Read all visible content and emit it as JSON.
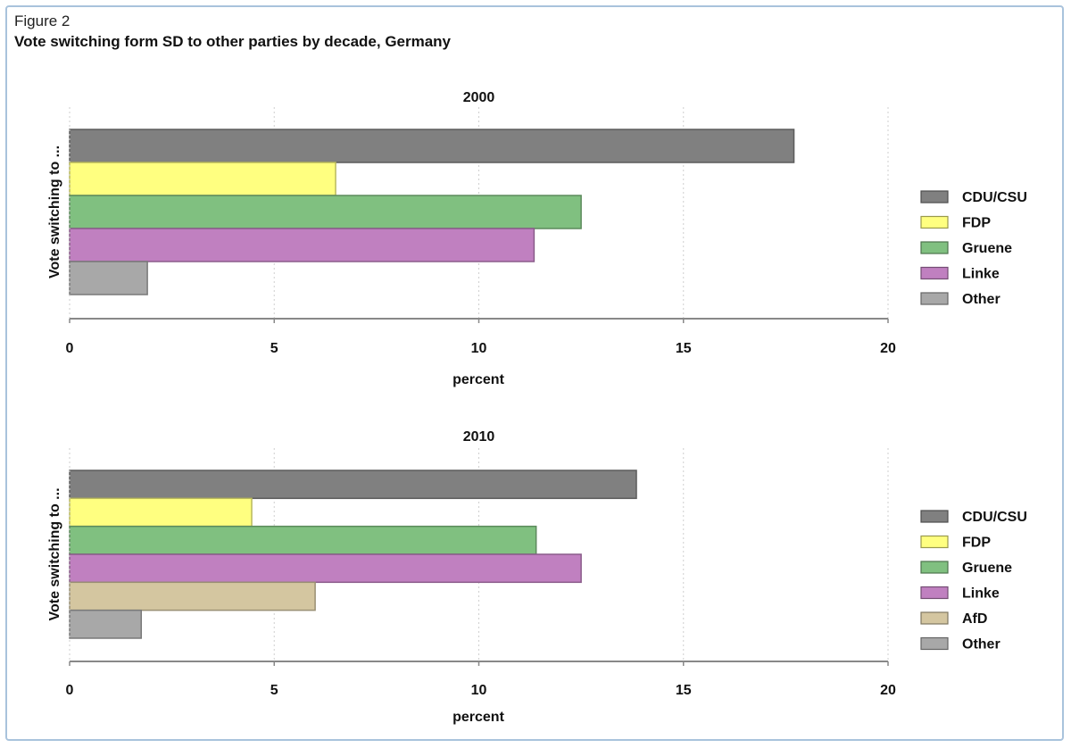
{
  "figure": {
    "label": "Figure 2",
    "title": "Vote switching form SD to other parties by decade, Germany"
  },
  "colors": {
    "CDU/CSU": "#808080",
    "FDP": "#ffff80",
    "Gruene": "#80c080",
    "Linke": "#c080c0",
    "AfD": "#d4c6a0",
    "Other": "#a8a8a8"
  },
  "chart_data": [
    {
      "type": "bar",
      "orientation": "horizontal",
      "title": "2000",
      "xlabel": "percent",
      "ylabel": "Vote switching to ...",
      "xlim": [
        0,
        20
      ],
      "xticks": [
        "0",
        "5",
        "10",
        "15",
        "20"
      ],
      "grid": "vertical dotted",
      "legend_position": "right",
      "categories": [
        "CDU/CSU",
        "FDP",
        "Gruene",
        "Linke",
        "Other"
      ],
      "values": [
        17.7,
        6.5,
        12.5,
        11.35,
        1.9
      ]
    },
    {
      "type": "bar",
      "orientation": "horizontal",
      "title": "2010",
      "xlabel": "percent",
      "ylabel": "Vote switching to ...",
      "xlim": [
        0,
        20
      ],
      "xticks": [
        "0",
        "5",
        "10",
        "15",
        "20"
      ],
      "grid": "vertical dotted",
      "legend_position": "right",
      "categories": [
        "CDU/CSU",
        "FDP",
        "Gruene",
        "Linke",
        "AfD",
        "Other"
      ],
      "values": [
        13.85,
        4.45,
        11.4,
        12.5,
        6.0,
        1.75
      ]
    }
  ]
}
